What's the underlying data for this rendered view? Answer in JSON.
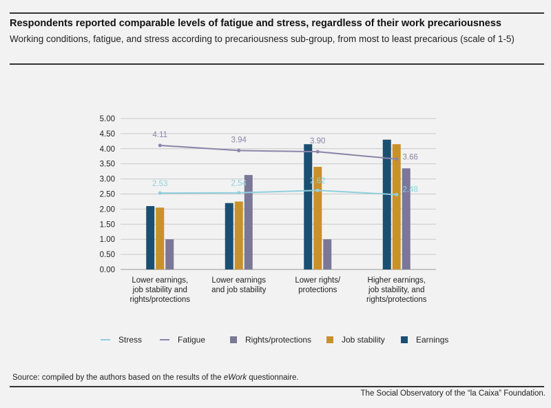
{
  "header": {
    "title": "Respondents reported comparable levels of fatigue and stress, regardless of their work precariousness",
    "subtitle": "Working conditions, fatigue, and stress according to precariousness sub-group, from most to least precarious (scale of 1-5)"
  },
  "footer": {
    "source_prefix": "Source: compiled by the authors based on the results of the ",
    "source_italic": "eWork",
    "source_suffix": " questionnaire.",
    "credit": "The Social Observatory of the “la Caixa” Foundation."
  },
  "colors": {
    "earnings": "#1b4f72",
    "job_stability": "#c8912a",
    "rights_protections": "#7a7896",
    "stress": "#8fcfde",
    "fatigue": "#8a85a8",
    "grid": "#c8c8c8"
  },
  "chart_data": {
    "type": "bar",
    "ylim": [
      0,
      5
    ],
    "yticks": [
      "0.00",
      "0.50",
      "1.00",
      "1.50",
      "2.00",
      "2.50",
      "3.00",
      "3.50",
      "4.00",
      "4.50",
      "5.00"
    ],
    "grid": true,
    "legend_position": "bottom",
    "categories": [
      [
        "Lower earnings,",
        "job stability and",
        "rights/protections"
      ],
      [
        "Lower earnings",
        "and job stability"
      ],
      [
        "Lower rights/",
        "protections"
      ],
      [
        "Higher earnings,",
        "job stability, and",
        "rights/protections"
      ]
    ],
    "series": [
      {
        "name": "Earnings",
        "kind": "bar",
        "color_key": "earnings",
        "values": [
          2.1,
          2.2,
          4.15,
          4.3
        ]
      },
      {
        "name": "Job stability",
        "kind": "bar",
        "color_key": "job_stability",
        "values": [
          2.05,
          2.25,
          3.4,
          4.15
        ]
      },
      {
        "name": "Rights/protections",
        "kind": "bar",
        "color_key": "rights_protections",
        "values": [
          1.0,
          3.13,
          1.0,
          3.35
        ]
      },
      {
        "name": "Stress",
        "kind": "line",
        "color_key": "stress",
        "values": [
          2.53,
          2.54,
          2.62,
          2.48
        ],
        "labels": [
          "2.53",
          "2.54",
          "2.62",
          "2.48"
        ]
      },
      {
        "name": "Fatigue",
        "kind": "line",
        "color_key": "fatigue",
        "values": [
          4.11,
          3.94,
          3.9,
          3.66
        ],
        "labels": [
          "4.11",
          "3.94",
          "3.90",
          "3.66"
        ]
      }
    ],
    "legend": [
      "Stress",
      "Fatigue",
      "Rights/protections",
      "Job stability",
      "Earnings"
    ]
  }
}
